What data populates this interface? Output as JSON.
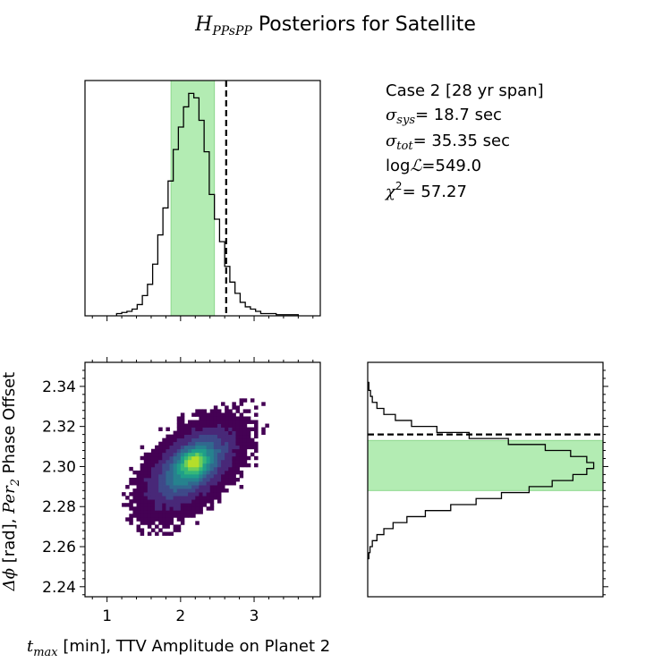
{
  "figure": {
    "title_math": "H",
    "title_sub": "PPsPP",
    "title_rest": " Posteriors for Satellite"
  },
  "info": {
    "case": "Case 2 [28 yr span]",
    "sigma_sys": "= 18.7 sec",
    "sigma_tot": "= 35.35 sec",
    "loglike": "=549.0",
    "chi2": "= 57.27"
  },
  "colors": {
    "interval_fill": "#b3ecb3",
    "interval_edge": "#8ed88e",
    "hist_line": "#000000",
    "truth_line": "#000000",
    "viridis": [
      "#440154",
      "#482878",
      "#3e4989",
      "#31688e",
      "#26828e",
      "#1f9e89",
      "#35b779",
      "#6ece58",
      "#b5de2b",
      "#fde725"
    ]
  },
  "chart_data": [
    {
      "type": "histogram",
      "panel": "top-left",
      "variable": "t_max [min]",
      "xlim": [
        0.7,
        3.9
      ],
      "bins": [
        {
          "x0": 1.13,
          "x1": 1.2,
          "v": 0.01
        },
        {
          "x0": 1.2,
          "x1": 1.27,
          "v": 0.015
        },
        {
          "x0": 1.27,
          "x1": 1.34,
          "v": 0.02
        },
        {
          "x0": 1.34,
          "x1": 1.41,
          "v": 0.03
        },
        {
          "x0": 1.41,
          "x1": 1.48,
          "v": 0.05
        },
        {
          "x0": 1.48,
          "x1": 1.55,
          "v": 0.09
        },
        {
          "x0": 1.55,
          "x1": 1.62,
          "v": 0.14
        },
        {
          "x0": 1.62,
          "x1": 1.69,
          "v": 0.23
        },
        {
          "x0": 1.69,
          "x1": 1.76,
          "v": 0.36
        },
        {
          "x0": 1.76,
          "x1": 1.83,
          "v": 0.48
        },
        {
          "x0": 1.83,
          "x1": 1.9,
          "v": 0.6
        },
        {
          "x0": 1.9,
          "x1": 1.97,
          "v": 0.74
        },
        {
          "x0": 1.97,
          "x1": 2.04,
          "v": 0.84
        },
        {
          "x0": 2.04,
          "x1": 2.11,
          "v": 0.93
        },
        {
          "x0": 2.11,
          "x1": 2.18,
          "v": 0.99
        },
        {
          "x0": 2.18,
          "x1": 2.25,
          "v": 0.97
        },
        {
          "x0": 2.25,
          "x1": 2.32,
          "v": 0.87
        },
        {
          "x0": 2.32,
          "x1": 2.39,
          "v": 0.73
        },
        {
          "x0": 2.39,
          "x1": 2.46,
          "v": 0.54
        },
        {
          "x0": 2.46,
          "x1": 2.53,
          "v": 0.43
        },
        {
          "x0": 2.53,
          "x1": 2.6,
          "v": 0.33
        },
        {
          "x0": 2.6,
          "x1": 2.67,
          "v": 0.22
        },
        {
          "x0": 2.67,
          "x1": 2.74,
          "v": 0.15
        },
        {
          "x0": 2.74,
          "x1": 2.81,
          "v": 0.1
        },
        {
          "x0": 2.81,
          "x1": 2.88,
          "v": 0.06
        },
        {
          "x0": 2.88,
          "x1": 2.95,
          "v": 0.04
        },
        {
          "x0": 2.95,
          "x1": 3.02,
          "v": 0.03
        },
        {
          "x0": 3.02,
          "x1": 3.09,
          "v": 0.02
        },
        {
          "x0": 3.09,
          "x1": 3.3,
          "v": 0.01
        },
        {
          "x0": 3.3,
          "x1": 3.6,
          "v": 0.005
        }
      ],
      "interval": [
        1.87,
        2.46
      ],
      "truth": 2.62
    },
    {
      "type": "heatmap",
      "panel": "bottom-left",
      "xlabel_math": "t",
      "xlabel_sub": "max",
      "xlabel_rest": " [min], TTV Amplitude on Planet 2",
      "ylabel_math_1": "Δϕ",
      "ylabel_text_1": " [rad], ",
      "ylabel_math_2": "Per",
      "ylabel_sub": "2",
      "ylabel_text_2": " Phase Offset",
      "xlim": [
        0.7,
        3.9
      ],
      "ylim": [
        2.235,
        2.352
      ],
      "x_ticks": [
        1,
        2,
        3
      ],
      "y_ticks": [
        2.24,
        2.26,
        2.28,
        2.3,
        2.32,
        2.34
      ],
      "x_tick_labels": [
        "1",
        "2",
        "3"
      ],
      "y_tick_labels": [
        "2.24",
        "2.26",
        "2.28",
        "2.30",
        "2.32",
        "2.34"
      ],
      "density": {
        "mean": [
          2.15,
          2.3
        ],
        "sd": [
          0.38,
          0.013
        ],
        "corr": 0.55,
        "x_extent": [
          1.2,
          3.5
        ],
        "y_extent": [
          2.244,
          2.343
        ],
        "peak_at": [
          2.15,
          2.302
        ],
        "bin_dx": 0.05,
        "bin_dy": 0.0018
      }
    },
    {
      "type": "histogram",
      "orientation": "horizontal",
      "panel": "bottom-right",
      "variable": "Δϕ [rad]",
      "ylim": [
        2.235,
        2.352
      ],
      "bins": [
        {
          "y0": 2.254,
          "y1": 2.257,
          "v": 0.005
        },
        {
          "y0": 2.257,
          "y1": 2.26,
          "v": 0.01
        },
        {
          "y0": 2.26,
          "y1": 2.263,
          "v": 0.02
        },
        {
          "y0": 2.263,
          "y1": 2.266,
          "v": 0.04
        },
        {
          "y0": 2.266,
          "y1": 2.269,
          "v": 0.07
        },
        {
          "y0": 2.269,
          "y1": 2.272,
          "v": 0.11
        },
        {
          "y0": 2.272,
          "y1": 2.275,
          "v": 0.17
        },
        {
          "y0": 2.275,
          "y1": 2.278,
          "v": 0.25
        },
        {
          "y0": 2.278,
          "y1": 2.281,
          "v": 0.36
        },
        {
          "y0": 2.281,
          "y1": 2.284,
          "v": 0.47
        },
        {
          "y0": 2.284,
          "y1": 2.287,
          "v": 0.58
        },
        {
          "y0": 2.287,
          "y1": 2.29,
          "v": 0.7
        },
        {
          "y0": 2.29,
          "y1": 2.293,
          "v": 0.8
        },
        {
          "y0": 2.293,
          "y1": 2.296,
          "v": 0.89
        },
        {
          "y0": 2.296,
          "y1": 2.299,
          "v": 0.95
        },
        {
          "y0": 2.299,
          "y1": 2.302,
          "v": 0.98
        },
        {
          "y0": 2.302,
          "y1": 2.305,
          "v": 0.95
        },
        {
          "y0": 2.305,
          "y1": 2.308,
          "v": 0.88
        },
        {
          "y0": 2.308,
          "y1": 2.311,
          "v": 0.77
        },
        {
          "y0": 2.311,
          "y1": 2.314,
          "v": 0.61
        },
        {
          "y0": 2.314,
          "y1": 2.317,
          "v": 0.44
        },
        {
          "y0": 2.317,
          "y1": 2.32,
          "v": 0.3
        },
        {
          "y0": 2.32,
          "y1": 2.323,
          "v": 0.19
        },
        {
          "y0": 2.323,
          "y1": 2.326,
          "v": 0.12
        },
        {
          "y0": 2.326,
          "y1": 2.329,
          "v": 0.07
        },
        {
          "y0": 2.329,
          "y1": 2.332,
          "v": 0.04
        },
        {
          "y0": 2.332,
          "y1": 2.335,
          "v": 0.02
        },
        {
          "y0": 2.335,
          "y1": 2.338,
          "v": 0.012
        },
        {
          "y0": 2.338,
          "y1": 2.342,
          "v": 0.005
        }
      ],
      "interval": [
        2.288,
        2.313
      ],
      "truth": 2.316
    }
  ]
}
